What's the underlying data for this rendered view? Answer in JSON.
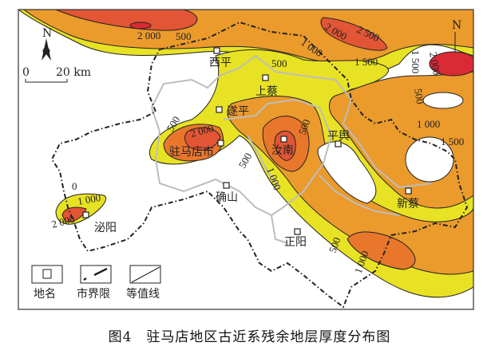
{
  "caption": "图4　驻马店地区古近系残余地层厚度分布图",
  "colors": {
    "zone_0_500": "#e8e224",
    "zone_500_1000": "#eeb52c",
    "zone_1000_1500": "#eb9a2c",
    "zone_1500_2000": "#e8772c",
    "zone_2000_2500": "#e25535",
    "zone_over_2500": "#d92a35",
    "county_border": "#bdbdbd",
    "city_border": "#222222"
  },
  "north_arrow": {
    "label": "N"
  },
  "scale_bar": {
    "start": "0",
    "end": "20 km"
  },
  "places": [
    {
      "name": "西平"
    },
    {
      "name": "上蔡"
    },
    {
      "name": "遂平"
    },
    {
      "name": "驻马店市"
    },
    {
      "name": "汝南"
    },
    {
      "name": "平舆"
    },
    {
      "name": "确山"
    },
    {
      "name": "新蔡"
    },
    {
      "name": "正阳"
    },
    {
      "name": "泌阳"
    }
  ],
  "contour_labels": [
    "2 000",
    "500",
    "2 000",
    "2 500",
    "1 500",
    "1 000",
    "500",
    "1 500",
    "2 000",
    "500",
    "1 000",
    "1 500",
    "500",
    "2 000",
    "500",
    "1 000",
    "500",
    "0",
    "1 000",
    "2 000",
    "500",
    "1 000"
  ],
  "legend": [
    {
      "label": "地名",
      "icon": "square-marker-icon"
    },
    {
      "label": "市界限",
      "icon": "dash-dot-line-icon"
    },
    {
      "label": "等值线",
      "icon": "contour-line-icon"
    }
  ]
}
